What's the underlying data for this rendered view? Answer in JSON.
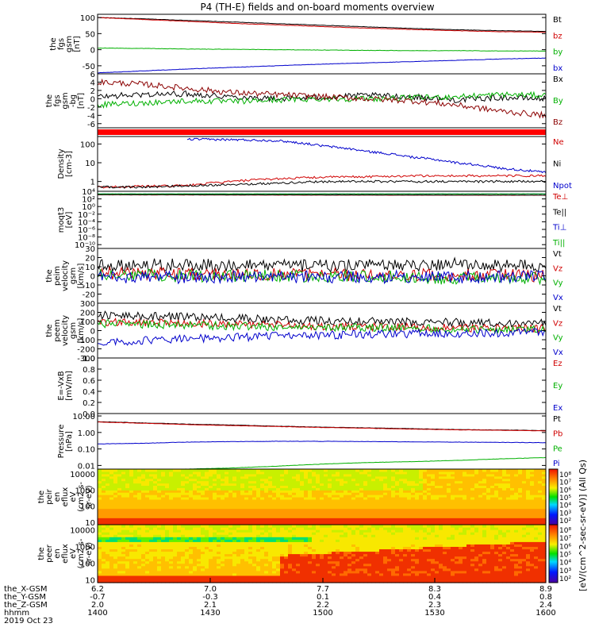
{
  "chart_data": {
    "title": "P4 (TH-E) fields and on-board moments overview",
    "type": "line",
    "panels": [
      {
        "id": "fgs-gsm",
        "type": "line",
        "ylabel_lines": [
          "the",
          "fgs",
          "gsm",
          "[nT]"
        ],
        "ylim": [
          -75,
          110
        ],
        "yticks": [
          "100",
          "50",
          "0",
          "-50"
        ],
        "ytick_values": [
          100,
          50,
          0,
          -50
        ],
        "series": [
          {
            "name": "Bt",
            "color": "#000000",
            "x": [
              0,
              0.1,
              0.2,
              0.3,
              0.4,
              0.5,
              0.6,
              0.7,
              0.8,
              0.9,
              1.0
            ],
            "values": [
              100,
              96,
              91,
              86,
              81,
              76,
              71,
              66,
              62,
              59,
              57
            ]
          },
          {
            "name": "bz",
            "color": "#d00000",
            "x": [
              0,
              0.1,
              0.2,
              0.3,
              0.4,
              0.5,
              0.6,
              0.7,
              0.8,
              0.9,
              1.0
            ],
            "values": [
              100,
              94,
              88,
              82,
              77,
              72,
              67,
              63,
              59,
              56,
              54
            ]
          },
          {
            "name": "by",
            "color": "#00b000",
            "x": [
              0,
              0.1,
              0.2,
              0.3,
              0.4,
              0.5,
              0.6,
              0.7,
              0.8,
              0.9,
              1.0
            ],
            "values": [
              5,
              4,
              2,
              1,
              0,
              -1,
              -2,
              -3,
              -3,
              -4,
              -4
            ]
          },
          {
            "name": "bx",
            "color": "#0000cc",
            "x": [
              0,
              0.1,
              0.2,
              0.3,
              0.4,
              0.5,
              0.6,
              0.7,
              0.8,
              0.9,
              1.0
            ],
            "values": [
              -72,
              -66,
              -60,
              -55,
              -50,
              -45,
              -41,
              -37,
              -33,
              -29,
              -26
            ]
          }
        ]
      },
      {
        "id": "fgs-gsm-bg",
        "type": "line",
        "ylabel_lines": [
          "the",
          "fgs",
          "gsm",
          "-bg",
          "[nT]"
        ],
        "ylim": [
          -7,
          6
        ],
        "yticks": [
          "6",
          "4",
          "2",
          "0",
          "-2",
          "-4",
          "-6"
        ],
        "ytick_values": [
          6,
          4,
          2,
          0,
          -2,
          -4,
          -6
        ],
        "series": [
          {
            "name": "Bx",
            "color": "#000000",
            "x": [
              0,
              0.1,
              0.2,
              0.3,
              0.4,
              0.5,
              0.6,
              0.7,
              0.8,
              0.9,
              1.0
            ],
            "values": [
              0.5,
              1,
              1.2,
              0.5,
              0,
              0.3,
              0.8,
              0.5,
              -0.3,
              0.3,
              0
            ]
          },
          {
            "name": "By",
            "color": "#00b000",
            "x": [
              0,
              0.1,
              0.2,
              0.3,
              0.4,
              0.5,
              0.6,
              0.7,
              0.8,
              0.9,
              1.0
            ],
            "values": [
              -1.5,
              -1,
              -0.5,
              -0.7,
              -0.3,
              0,
              0,
              0.2,
              0.5,
              1,
              0.8
            ]
          },
          {
            "name": "Bz",
            "color": "#8b0000",
            "x": [
              0,
              0.1,
              0.2,
              0.3,
              0.4,
              0.5,
              0.6,
              0.7,
              0.8,
              0.9,
              1.0
            ],
            "values": [
              4,
              3.5,
              2.5,
              1.5,
              1,
              0.5,
              0,
              -0.5,
              -1.5,
              -3,
              -4
            ]
          }
        ]
      },
      {
        "id": "flag-bar",
        "type": "line",
        "ylabel_lines": [],
        "series": [
          {
            "name": "flag",
            "color": "#ff0000",
            "x": [
              0,
              1.0
            ],
            "values": [
              1,
              1
            ]
          }
        ]
      },
      {
        "id": "density",
        "type": "line",
        "ylabel_lines": [
          "Density",
          "[cm-3]"
        ],
        "yscale": "log",
        "ylim": [
          0.3,
          250
        ],
        "yticks": [
          "100",
          "10",
          "1"
        ],
        "ytick_values": [
          100,
          10,
          1
        ],
        "series": [
          {
            "name": "Ne",
            "color": "#d00000",
            "x": [
              0,
              0.1,
              0.2,
              0.3,
              0.4,
              0.5,
              0.6,
              0.7,
              0.8,
              0.9,
              1.0
            ],
            "values": [
              0.5,
              0.55,
              0.6,
              1.0,
              1.4,
              1.7,
              1.8,
              2.0,
              2.0,
              2.0,
              2.0
            ]
          },
          {
            "name": "Ni",
            "color": "#000000",
            "x": [
              0,
              0.1,
              0.2,
              0.3,
              0.4,
              0.5,
              0.6,
              0.7,
              0.8,
              0.9,
              1.0
            ],
            "values": [
              0.5,
              0.5,
              0.6,
              0.7,
              0.8,
              1.0,
              1.0,
              1.0,
              1.0,
              1.0,
              1.0
            ]
          },
          {
            "name": "Npot",
            "color": "#0000cc",
            "x": [
              0.2,
              0.3,
              0.4,
              0.5,
              0.6,
              0.7,
              0.8,
              0.9,
              1.0
            ],
            "values": [
              180,
              170,
              150,
              80,
              40,
              20,
              10,
              5,
              3
            ]
          }
        ]
      },
      {
        "id": "moqt3",
        "type": "line",
        "ylabel_lines": [
          "moqt3",
          "[eV]"
        ],
        "yscale": "log",
        "ylim": [
          1e-11,
          10000.0
        ],
        "yticks": [
          "10⁴",
          "10²",
          "10⁰",
          "10⁻²",
          "10⁻⁴",
          "10⁻⁶",
          "10⁻⁸",
          "10⁻¹⁰"
        ],
        "ytick_values": [
          10000,
          100,
          1,
          0.01,
          0.0001,
          1e-06,
          1e-08,
          1e-10
        ],
        "series": [
          {
            "name": "Te⊥",
            "color": "#d00000",
            "x": [
              0,
              0.5,
              1.0
            ],
            "values": [
              1200,
              1000,
              900
            ]
          },
          {
            "name": "Te||",
            "color": "#000000",
            "x": [
              0,
              0.5,
              1.0
            ],
            "values": [
              1300,
              1100,
              950
            ]
          },
          {
            "name": "Ti⊥",
            "color": "#0000cc",
            "x": [
              0,
              0.5,
              1.0
            ],
            "values": [
              2000,
              2000,
              2000
            ]
          },
          {
            "name": "Ti||",
            "color": "#00b000",
            "x": [
              0,
              0.5,
              1.0
            ],
            "values": [
              2100,
              2100,
              2100
            ]
          }
        ]
      },
      {
        "id": "peim-velocity",
        "type": "line",
        "ylabel_lines": [
          "the",
          "peim",
          "velocity",
          "gsm",
          "[km/s]"
        ],
        "ylim": [
          -30,
          30
        ],
        "yticks": [
          "30",
          "20",
          "10",
          "0",
          "-10",
          "-20"
        ],
        "ytick_values": [
          30,
          20,
          10,
          0,
          -10,
          -20
        ],
        "series": [
          {
            "name": "Vt",
            "color": "#000000",
            "x": [
              0,
              0.2,
              0.4,
              0.6,
              0.8,
              1.0
            ],
            "values": [
              12,
              12,
              11,
              11,
              13,
              10
            ]
          },
          {
            "name": "Vz",
            "color": "#d00000",
            "x": [
              0,
              0.2,
              0.4,
              0.6,
              0.8,
              1.0
            ],
            "values": [
              3,
              2,
              2,
              1,
              1,
              0
            ]
          },
          {
            "name": "Vy",
            "color": "#00b000",
            "x": [
              0,
              0.2,
              0.4,
              0.6,
              0.8,
              1.0
            ],
            "values": [
              1,
              0,
              0,
              0,
              -3,
              -2
            ]
          },
          {
            "name": "Vx",
            "color": "#0000cc",
            "x": [
              0,
              0.2,
              0.4,
              0.6,
              0.8,
              1.0
            ],
            "values": [
              -2,
              -2,
              -1,
              -1,
              -2,
              -1
            ]
          }
        ]
      },
      {
        "id": "peem-velocity",
        "type": "line",
        "ylabel_lines": [
          "the",
          "peem",
          "velocity",
          "gsm",
          "[km/s]"
        ],
        "ylim": [
          -300,
          300
        ],
        "yticks": [
          "300",
          "200",
          "100",
          "0",
          "-100",
          "-200",
          "-300"
        ],
        "ytick_values": [
          300,
          200,
          100,
          0,
          -100,
          -200,
          -300
        ],
        "series": [
          {
            "name": "Vt",
            "color": "#000000",
            "x": [
              0,
              0.2,
              0.4,
              0.6,
              0.8,
              1.0
            ],
            "values": [
              170,
              150,
              120,
              100,
              90,
              80
            ]
          },
          {
            "name": "Vz",
            "color": "#d00000",
            "x": [
              0,
              0.2,
              0.4,
              0.6,
              0.8,
              1.0
            ],
            "values": [
              100,
              80,
              60,
              40,
              30,
              20
            ]
          },
          {
            "name": "Vy",
            "color": "#00b000",
            "x": [
              0,
              0.2,
              0.4,
              0.6,
              0.8,
              1.0
            ],
            "values": [
              80,
              60,
              40,
              30,
              20,
              10
            ]
          },
          {
            "name": "Vx",
            "color": "#0000cc",
            "x": [
              0,
              0.2,
              0.4,
              0.6,
              0.8,
              1.0
            ],
            "values": [
              -130,
              -90,
              -60,
              -40,
              -30,
              -20
            ]
          }
        ]
      },
      {
        "id": "e-field",
        "type": "line",
        "ylabel_lines": [
          "E=-VxB",
          "[mV/m]"
        ],
        "ylim": [
          0,
          1
        ],
        "yticks": [
          "1.0",
          "0.8",
          "0.6",
          "0.4",
          "0.2",
          "0.0"
        ],
        "ytick_values": [
          1,
          0.8,
          0.6,
          0.4,
          0.2,
          0
        ],
        "series": [
          {
            "name": "Ez",
            "color": "#d00000",
            "x": [],
            "values": []
          },
          {
            "name": "Ey",
            "color": "#00b000",
            "x": [],
            "values": []
          },
          {
            "name": "Ex",
            "color": "#0000cc",
            "x": [],
            "values": []
          }
        ]
      },
      {
        "id": "pressure",
        "type": "line",
        "ylabel_lines": [
          "Pressure",
          "[nPa]"
        ],
        "yscale": "log",
        "ylim": [
          0.006,
          14
        ],
        "yticks": [
          "10.00",
          "1.00",
          "0.10",
          "0.01"
        ],
        "ytick_values": [
          10,
          1,
          0.1,
          0.01
        ],
        "series": [
          {
            "name": "Pt",
            "color": "#000000",
            "x": [
              0,
              0.1,
              0.2,
              0.3,
              0.4,
              0.5,
              0.6,
              0.7,
              0.8,
              0.9,
              1.0
            ],
            "values": [
              4.5,
              3.8,
              3.2,
              2.8,
              2.4,
              2.1,
              1.9,
              1.7,
              1.5,
              1.4,
              1.3
            ]
          },
          {
            "name": "Pb",
            "color": "#d00000",
            "x": [
              0,
              0.1,
              0.2,
              0.3,
              0.4,
              0.5,
              0.6,
              0.7,
              0.8,
              0.9,
              1.0
            ],
            "values": [
              4.3,
              3.6,
              3.0,
              2.6,
              2.3,
              2.0,
              1.8,
              1.6,
              1.45,
              1.35,
              1.25
            ]
          },
          {
            "name": "Pe",
            "color": "#00b000",
            "x": [
              0,
              0.1,
              0.2,
              0.3,
              0.4,
              0.5,
              0.6,
              0.7,
              0.8,
              0.9,
              1.0
            ],
            "values": [
              0.005,
              0.005,
              0.006,
              0.007,
              0.009,
              0.012,
              0.015,
              0.017,
              0.02,
              0.025,
              0.03
            ]
          },
          {
            "name": "Pi",
            "color": "#0000cc",
            "x": [
              0,
              0.1,
              0.2,
              0.3,
              0.4,
              0.5,
              0.6,
              0.7,
              0.8,
              0.9,
              1.0
            ],
            "values": [
              0.2,
              0.22,
              0.26,
              0.28,
              0.29,
              0.29,
              0.28,
              0.27,
              0.26,
              0.25,
              0.24
            ]
          }
        ]
      },
      {
        "id": "peir-spectrogram",
        "type": "heatmap",
        "ylabel_lines": [
          "the",
          "peir",
          "en",
          "eflux",
          "eV",
          "(cm2-s-",
          "sr-eV)"
        ],
        "yscale": "log",
        "ylim": [
          7,
          20000
        ],
        "yticks": [
          "10000",
          "1000",
          "100",
          "10"
        ],
        "ytick_values": [
          10000,
          1000,
          100,
          10
        ]
      },
      {
        "id": "peer-spectrogram",
        "type": "heatmap",
        "ylabel_lines": [
          "the",
          "peer",
          "en",
          "eflux",
          "eV",
          "(cm2-s-",
          "sr-eV)"
        ],
        "yscale": "log",
        "ylim": [
          7,
          20000
        ],
        "yticks": [
          "10000",
          "1000",
          "100",
          "10"
        ],
        "ytick_values": [
          10000,
          1000,
          100,
          10
        ]
      }
    ],
    "colorbar": {
      "label": "[eV/(cm^2-sec-sr-eV)] (All Qs)",
      "ticks": [
        "10⁸",
        "10⁷",
        "10⁶",
        "10⁵",
        "10⁴",
        "10³",
        "10²"
      ],
      "ticks_lower": [
        "10⁸",
        "10⁷",
        "10⁶",
        "10⁵",
        "10⁴",
        "10³",
        "10²"
      ]
    },
    "xaxis": {
      "rows": [
        {
          "label": "the_X-GSM",
          "values": [
            "6.2",
            "7.0",
            "7.7",
            "8.3",
            "8.9"
          ]
        },
        {
          "label": "the_Y-GSM",
          "values": [
            "-0.7",
            "-0.3",
            "0.1",
            "0.4",
            "0.8"
          ]
        },
        {
          "label": "the_Z-GSM",
          "values": [
            "2.0",
            "2.1",
            "2.2",
            "2.3",
            "2.4"
          ]
        },
        {
          "label": "hhmm",
          "values": [
            "1400",
            "1430",
            "1500",
            "1530",
            "1600"
          ]
        },
        {
          "label": "2019 Oct 23",
          "values": []
        }
      ]
    }
  }
}
